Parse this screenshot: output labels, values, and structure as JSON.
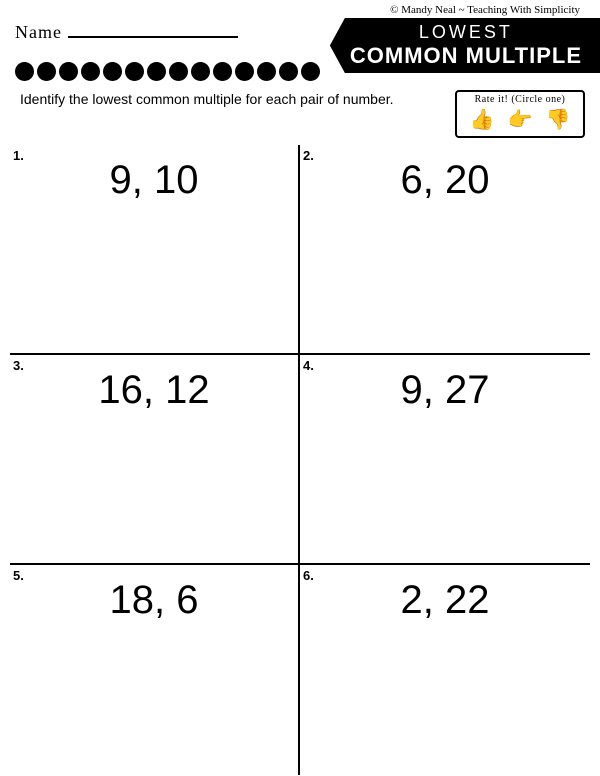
{
  "copyright": "© Mandy Neal ~ Teaching With Simplicity",
  "name_label": "Name",
  "title": {
    "line1": "LOWEST",
    "line2": "COMMON MULTIPLE"
  },
  "dot_count": 14,
  "instructions": "Identify the lowest common multiple for each pair of number.",
  "rate_label": "Rate it! (Circle one)",
  "thumbs": {
    "up": "👍",
    "side": "👉",
    "down": "👎"
  },
  "problems": [
    {
      "num": "1.",
      "value": "9, 10"
    },
    {
      "num": "2.",
      "value": "6, 20"
    },
    {
      "num": "3.",
      "value": "16, 12"
    },
    {
      "num": "4.",
      "value": "9, 27"
    },
    {
      "num": "5.",
      "value": "18, 6"
    },
    {
      "num": "6.",
      "value": "2, 22"
    }
  ],
  "colors": {
    "bg": "#ffffff",
    "fg": "#000000"
  }
}
